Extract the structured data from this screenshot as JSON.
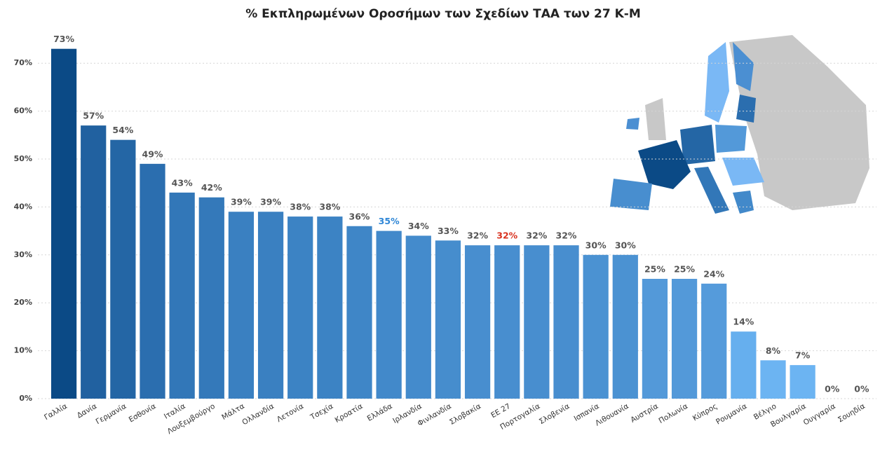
{
  "chart_data": {
    "type": "bar",
    "title": "% Εκπληρωμένων Οροσήμων των Σχεδίων ΤΑΑ των 27 Κ-Μ",
    "categories": [
      "Γαλλία",
      "Δανία",
      "Γερμανία",
      "Εσθονία",
      "Ιταλία",
      "Λουξεμβούργο",
      "Μάλτα",
      "Ολλανδία",
      "Λετονία",
      "Τσεχία",
      "Κροατία",
      "Ελλάδα",
      "Ιρλανδία",
      "Φινλανδία",
      "Σλοβακία",
      "ΕΕ 27",
      "Πορτογαλία",
      "Σλοβενία",
      "Ισπανία",
      "Λιθουανία",
      "Αυστρία",
      "Πολωνία",
      "Κύπρος",
      "Ρουμανία",
      "Βέλγιο",
      "Βουλγαρία",
      "Ουγγαρία",
      "Σουηδία"
    ],
    "values": [
      73,
      57,
      54,
      49,
      43,
      42,
      39,
      39,
      38,
      38,
      36,
      35,
      34,
      33,
      32,
      32,
      32,
      32,
      30,
      30,
      25,
      25,
      24,
      14,
      8,
      7,
      0,
      0
    ],
    "value_labels": [
      "73%",
      "57%",
      "54%",
      "49%",
      "43%",
      "42%",
      "39%",
      "39%",
      "38%",
      "38%",
      "36%",
      "35%",
      "34%",
      "33%",
      "32%",
      "32%",
      "32%",
      "32%",
      "30%",
      "30%",
      "25%",
      "25%",
      "24%",
      "14%",
      "8%",
      "7%",
      "0%",
      "0%"
    ],
    "colors": [
      "#0b4a86",
      "#2161a0",
      "#2466a5",
      "#2b6eaf",
      "#3277b8",
      "#3479ba",
      "#3a80c1",
      "#3a80c1",
      "#3c83c4",
      "#3c83c4",
      "#3f86c7",
      "#4289ca",
      "#448bcc",
      "#468dcd",
      "#488ecf",
      "#488ecf",
      "#488ecf",
      "#488ecf",
      "#4b92d2",
      "#4b92d2",
      "#5399d9",
      "#5399d9",
      "#559bdb",
      "#66afee",
      "#6cb4f2",
      "#6cb4f2",
      "#6cb4f2",
      "#6cb4f2"
    ],
    "label_color": "#555555",
    "highlights": [
      {
        "index": 11,
        "color": "#2e86d6"
      },
      {
        "index": 15,
        "color": "#d9321f"
      }
    ],
    "ylim": [
      0,
      75
    ],
    "yticks": [
      {
        "value": 0,
        "label": "0%"
      },
      {
        "value": 10,
        "label": "10%"
      },
      {
        "value": 20,
        "label": "20%"
      },
      {
        "value": 30,
        "label": "30%"
      },
      {
        "value": 40,
        "label": "40%"
      },
      {
        "value": 50,
        "label": "50%"
      },
      {
        "value": 60,
        "label": "60%"
      },
      {
        "value": 70,
        "label": "70%"
      }
    ],
    "grid": true
  }
}
